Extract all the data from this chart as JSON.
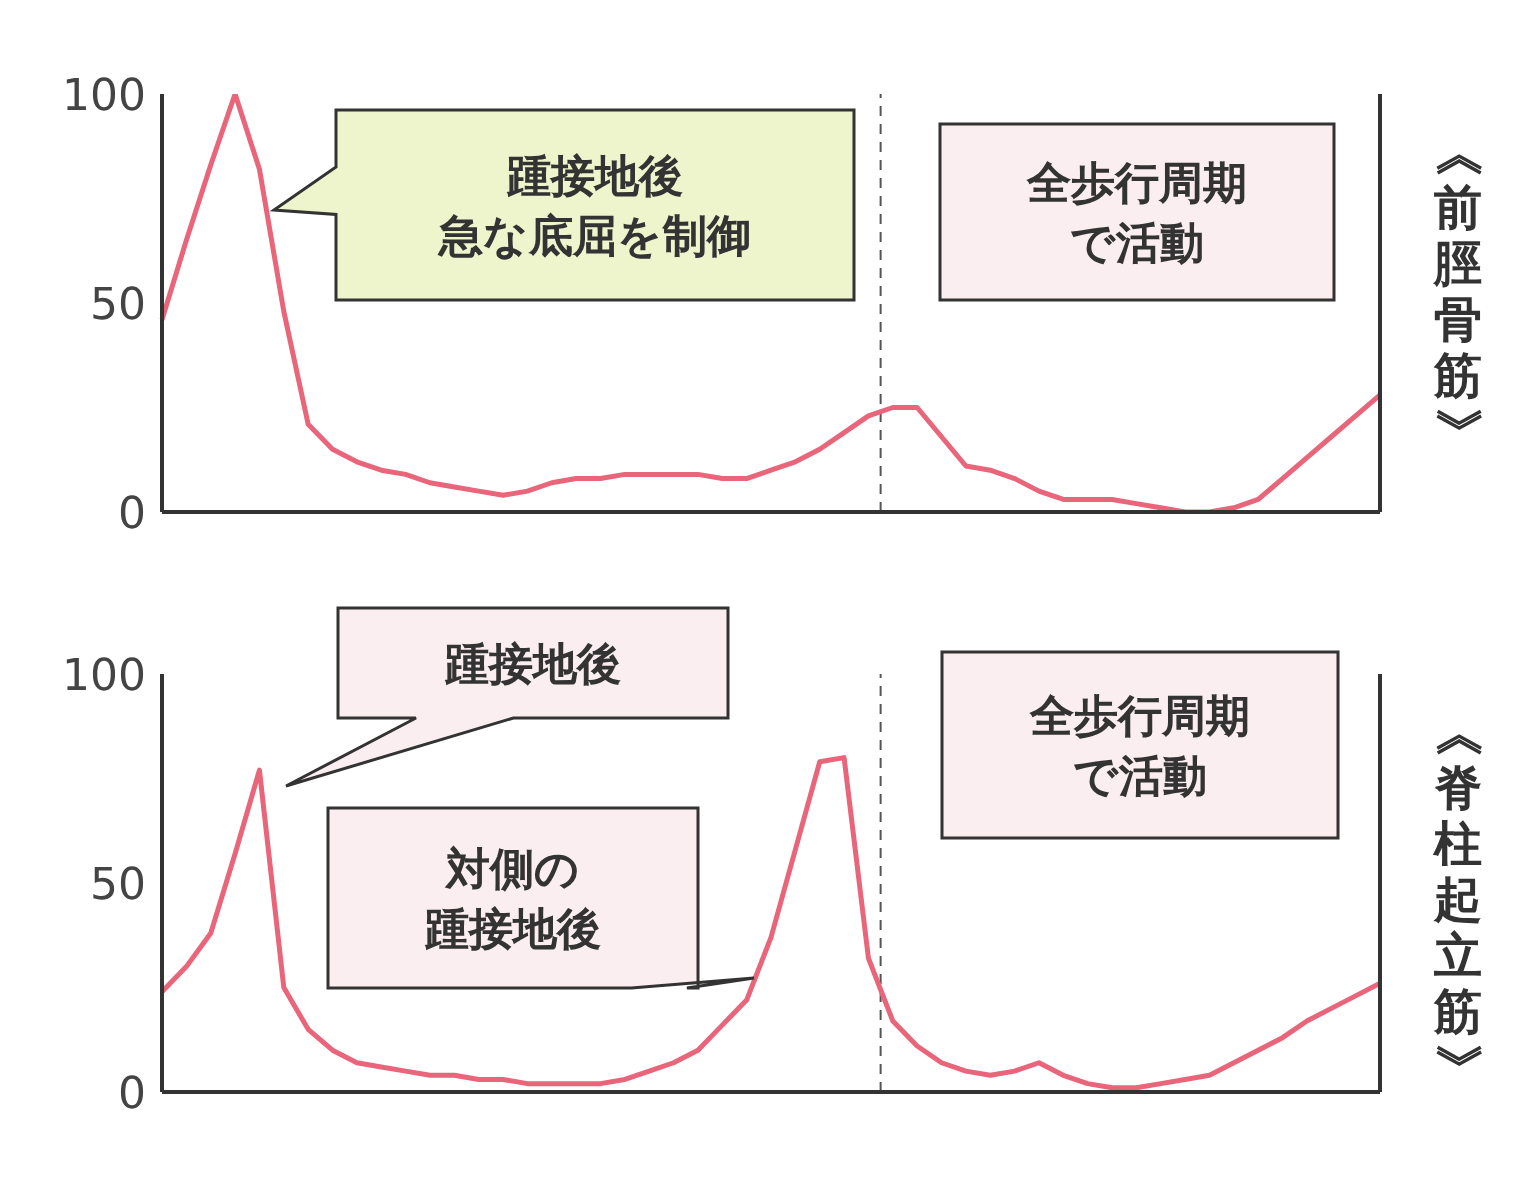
{
  "chart_data": [
    {
      "type": "line",
      "y2label": "《前脛骨筋》",
      "categories": [
        null,
        null,
        null,
        null,
        null,
        null,
        null,
        null,
        null,
        null,
        null,
        null,
        null,
        null,
        null,
        null,
        null,
        null,
        null,
        null,
        null,
        null,
        null,
        null,
        null,
        null,
        null,
        null,
        null,
        null,
        null,
        null,
        null,
        null,
        null,
        null,
        null,
        null,
        null,
        null,
        null,
        null,
        null,
        null,
        null,
        null,
        null,
        null,
        null,
        null,
        null
      ],
      "series": [
        {
          "color": "#e8657a",
          "values": [
            46,
            65,
            83,
            100,
            82,
            48,
            21,
            15,
            12,
            10,
            9,
            7,
            6,
            5,
            4,
            5,
            7,
            8,
            8,
            9,
            9,
            9,
            9,
            8,
            8,
            10,
            12,
            15,
            19,
            23,
            25,
            25,
            18,
            11,
            10,
            8,
            5,
            3,
            3,
            3,
            2,
            1,
            0,
            0,
            1,
            3,
            8,
            13,
            18,
            23,
            28
          ]
        }
      ],
      "ylim": [
        0,
        100
      ],
      "yticks": [
        0,
        50,
        100
      ],
      "tick_labels": "y",
      "marker": "none",
      "line_style": "solid",
      "annotations": [
        "踵接地後急な底屈を制御",
        "全歩行周期で活動"
      ]
    },
    {
      "type": "line",
      "y2label": "《脊柱起立筋》",
      "categories": [
        null,
        null,
        null,
        null,
        null,
        null,
        null,
        null,
        null,
        null,
        null,
        null,
        null,
        null,
        null,
        null,
        null,
        null,
        null,
        null,
        null,
        null,
        null,
        null,
        null,
        null,
        null,
        null,
        null,
        null,
        null,
        null,
        null,
        null,
        null,
        null,
        null,
        null,
        null,
        null,
        null,
        null,
        null,
        null,
        null,
        null,
        null,
        null,
        null,
        null,
        null
      ],
      "series": [
        {
          "color": "#e8657a",
          "values": [
            24,
            30,
            38,
            57,
            77,
            25,
            15,
            10,
            7,
            6,
            5,
            4,
            4,
            3,
            3,
            2,
            2,
            2,
            2,
            3,
            5,
            7,
            10,
            16,
            22,
            37,
            58,
            79,
            80,
            32,
            17,
            11,
            7,
            5,
            4,
            5,
            7,
            4,
            2,
            1,
            1,
            2,
            3,
            4,
            7,
            10,
            13,
            17,
            20,
            23,
            26
          ]
        }
      ],
      "ylim": [
        0,
        100
      ],
      "yticks": [
        0,
        50,
        100
      ],
      "tick_labels": "y",
      "marker": "none",
      "line_style": "solid",
      "annotations": [
        "踵接地後",
        "対側の踵接地後",
        "全歩行周期で活動"
      ]
    }
  ]
}
